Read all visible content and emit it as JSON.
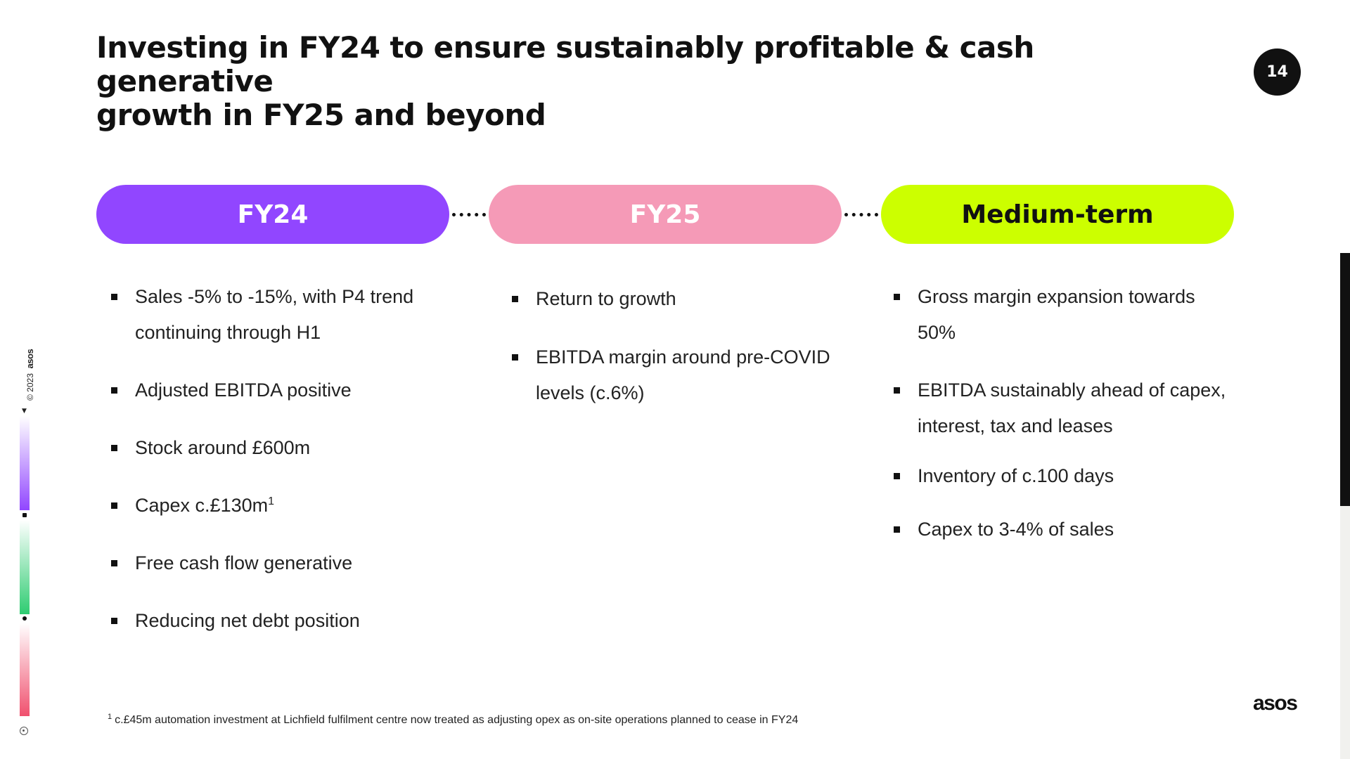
{
  "slide": {
    "title_line1": "Investing in FY24 to ensure sustainably profitable & cash generative",
    "title_line2": "growth in FY25 and beyond",
    "page_number": "14"
  },
  "columns": [
    {
      "label": "FY24",
      "pill_color": "#9146ff",
      "label_color": "#ffffff",
      "items": [
        "Sales -5% to -15%, with P4 trend continuing through H1",
        "Adjusted EBITDA positive",
        "Stock around £600m",
        "Capex c.£130m",
        "Free cash flow generative",
        "Reducing net debt position"
      ],
      "capex_footnote_marker": "1"
    },
    {
      "label": "FY25",
      "pill_color": "#f59ab7",
      "label_color": "#ffffff",
      "items": [
        "Return to growth",
        "EBITDA margin around pre-COVID levels (c.6%)"
      ]
    },
    {
      "label": "Medium-term",
      "pill_color": "#ccff00",
      "label_color": "#111111",
      "items": [
        "Gross margin expansion towards 50%",
        "EBITDA sustainably ahead of capex, interest, tax and leases",
        "Inventory of c.100 days",
        "Capex to 3-4% of sales"
      ]
    }
  ],
  "footnote": {
    "marker": "1",
    "text": "c.£45m automation investment at Lichfield fulfilment centre now treated as adjusting opex as on-site operations planned to cease in FY24"
  },
  "brand": {
    "logo_text": "asos",
    "copyright_text": "© 2023",
    "colors": {
      "purple": "#9146ff",
      "green": "#2ecc71",
      "pink": "#f0506e",
      "text": "#111111"
    }
  }
}
